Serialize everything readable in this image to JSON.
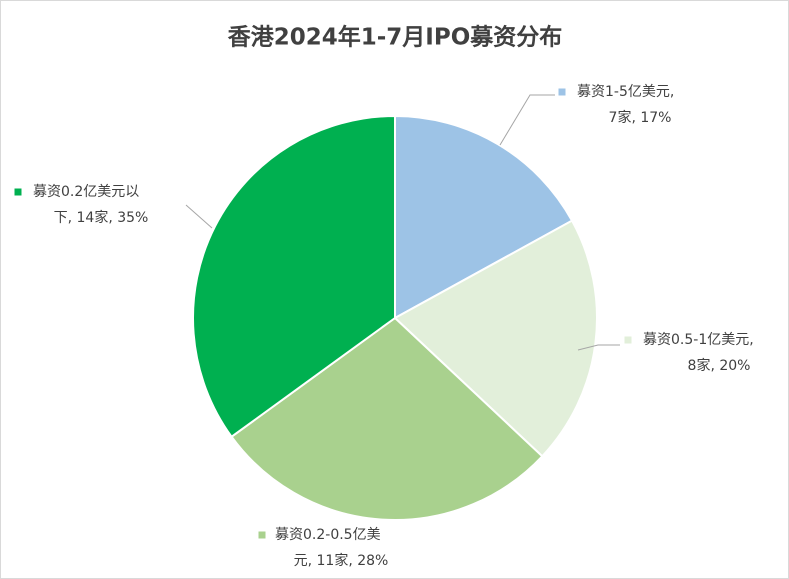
{
  "chart_data": {
    "type": "pie",
    "title": "香港2024年1-7月IPO募资分布",
    "values": [
      17,
      20,
      28,
      35
    ],
    "value_labels": [
      [
        "募资1-5亿美元,",
        "7家, 17%"
      ],
      [
        "募资0.5-1亿美元,",
        "8家, 20%"
      ],
      [
        "募资0.2-0.5亿美",
        "元, 11家, 28%"
      ],
      [
        "募资0.2亿美元以",
        "下, 14家, 35%"
      ]
    ],
    "colors": [
      "#9dc3e6",
      "#e2efda",
      "#a9d18e",
      "#00b050"
    ]
  }
}
